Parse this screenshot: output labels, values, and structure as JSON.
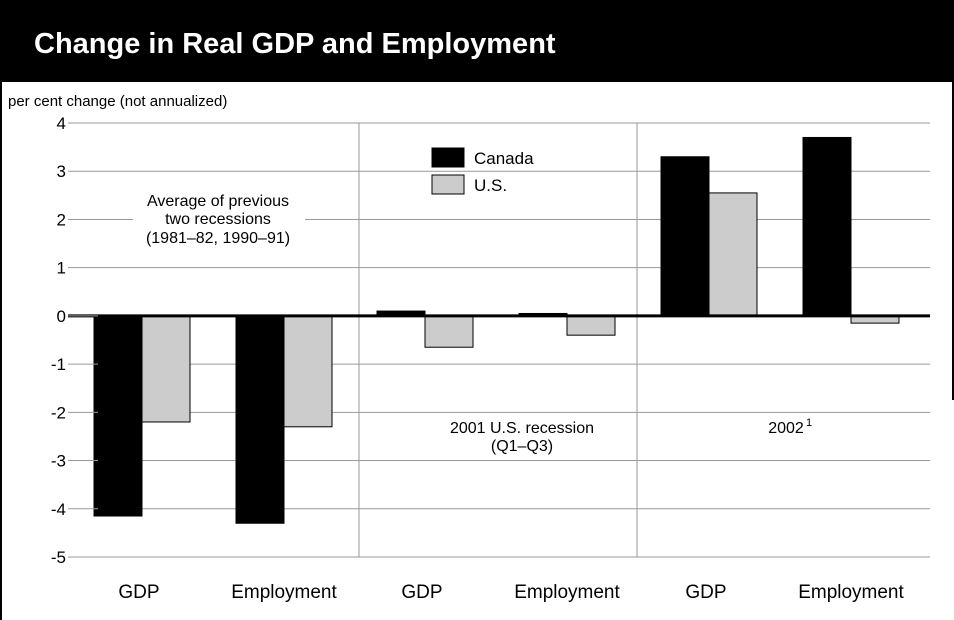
{
  "title": "Change in Real GDP and Employment",
  "chart_data": {
    "type": "bar",
    "ylabel": "per cent change (not annualized)",
    "ylim": [
      -5,
      4
    ],
    "yticks": [
      4,
      3,
      2,
      1,
      0,
      -1,
      -2,
      -3,
      -4,
      -5
    ],
    "ytick_labels": [
      "4",
      "3",
      "2",
      "1",
      "0",
      "-1",
      "-2",
      "-3",
      "-4",
      "-5"
    ],
    "grid": true,
    "groups": [
      {
        "label_lines": [
          "Average of previous",
          "two recessions",
          "(1981–82, 1990–91)"
        ],
        "categories": [
          "GDP",
          "Employment"
        ],
        "series": [
          {
            "name": "Canada",
            "values": [
              -4.15,
              -4.3
            ]
          },
          {
            "name": "U.S.",
            "values": [
              -2.2,
              -2.3
            ]
          }
        ]
      },
      {
        "label_lines": [
          "2001 U.S. recession",
          "(Q1–Q3)"
        ],
        "categories": [
          "GDP",
          "Employment"
        ],
        "series": [
          {
            "name": "Canada",
            "values": [
              0.1,
              0.05
            ]
          },
          {
            "name": "U.S.",
            "values": [
              -0.65,
              -0.4
            ]
          }
        ]
      },
      {
        "label_lines": [
          "2002"
        ],
        "label_superscript": "1",
        "categories": [
          "GDP",
          "Employment"
        ],
        "series": [
          {
            "name": "Canada",
            "values": [
              3.3,
              3.7
            ]
          },
          {
            "name": "U.S.",
            "values": [
              2.55,
              -0.15
            ]
          }
        ]
      }
    ],
    "legend": {
      "position": "top-center",
      "entries": [
        {
          "name": "Canada",
          "color": "#000000"
        },
        {
          "name": "U.S.",
          "color": "#cccccc"
        }
      ]
    },
    "colors": {
      "Canada": "#000000",
      "U.S.": "#cccccc"
    }
  }
}
